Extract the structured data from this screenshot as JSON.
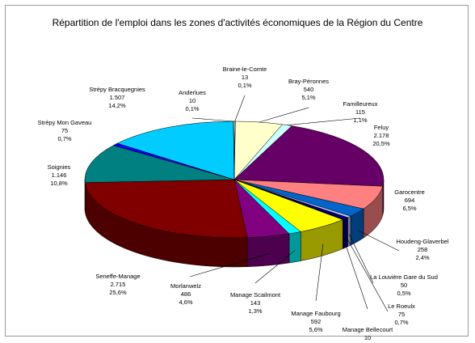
{
  "chart_data": {
    "type": "pie",
    "title": "Répartition de l'emploi dans les zones d'activités économiques de la Région du Centre",
    "categories": [
      "Braine-le-Comte",
      "Bray-Péronnes",
      "Familleureux",
      "Feluy",
      "Garocentre",
      "Houdeng-Glaverbel",
      "La Louvière Gare du Sud",
      "Le Roeulx",
      "Manage Bellecourt",
      "Manage Faubourg",
      "Manage Scailmont",
      "Morlanwelz",
      "Seneffe-Manage",
      "Soignies",
      "Strépy Mon Gaveau",
      "Strépy Bracquegnies",
      "Anderlues"
    ],
    "values": [
      13,
      540,
      115,
      2178,
      694,
      258,
      50,
      75,
      10,
      592,
      143,
      486,
      2715,
      1146,
      75,
      1507,
      10
    ],
    "value_labels": [
      "13",
      "540",
      "115",
      "2.178",
      "694",
      "258",
      "50",
      "75",
      "10",
      "592",
      "143",
      "486",
      "2.715",
      "1.146",
      "75",
      "1.507",
      "10"
    ],
    "percentages": [
      0.1,
      5.1,
      1.1,
      20.5,
      6.5,
      2.4,
      0.5,
      0.7,
      0.1,
      5.6,
      1.3,
      4.6,
      25.6,
      10.8,
      0.7,
      14.2,
      0.1
    ],
    "percentage_labels": [
      "0,1%",
      "5,1%",
      "1,1%",
      "20,5%",
      "6,5%",
      "2,4%",
      "0,5%",
      "0,7%",
      "0,1%",
      "5,6%",
      "1,3%",
      "4,6%",
      "25,6%",
      "10,8%",
      "0,7%",
      "14,2%",
      "0,1%"
    ],
    "colors": [
      "#f0f0f0",
      "#ffffcc",
      "#ccffff",
      "#660066",
      "#ff8080",
      "#0066cc",
      "#ccccff",
      "#000080",
      "#ff00ff",
      "#ffff00",
      "#00ffff",
      "#800080",
      "#800000",
      "#008080",
      "#0000ff",
      "#00ccff",
      "#ccffff"
    ]
  }
}
